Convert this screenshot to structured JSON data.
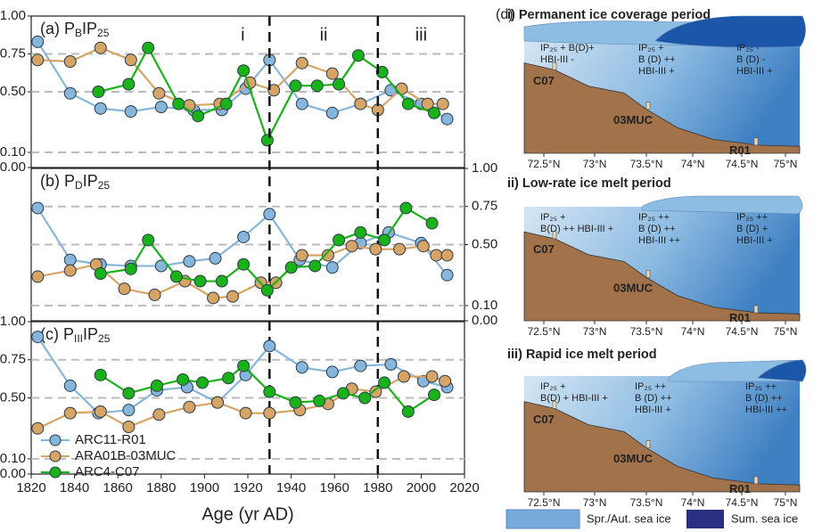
{
  "chart_data": [
    {
      "type": "line",
      "title": [
        "(a) P",
        "B",
        "IP",
        "25"
      ],
      "xlim": [
        1820,
        2020
      ],
      "ylim": [
        0,
        1
      ],
      "yticks": [
        {
          "value": 0,
          "label": "0.00"
        },
        {
          "value": 0.1,
          "label": "0.10"
        },
        {
          "value": 0.5,
          "label": "0.50"
        },
        {
          "value": 0.75,
          "label": "0.75"
        },
        {
          "value": 1,
          "label": "1.00"
        }
      ],
      "y_axis_side": "left",
      "grid": true,
      "period_boundaries": [
        1930,
        1980
      ],
      "period_labels": [
        "i",
        "ii",
        "iii"
      ],
      "series": [
        {
          "color": "#86b6dc",
          "x": [
            1823,
            1838,
            1852,
            1866,
            1880,
            1895,
            1908,
            1919,
            1930,
            1945,
            1959,
            1972,
            1986,
            2000,
            2012
          ],
          "values": [
            0.83,
            0.49,
            0.39,
            0.37,
            0.4,
            0.38,
            0.38,
            0.52,
            0.71,
            0.42,
            0.36,
            0.42,
            0.51,
            0.42,
            0.32
          ]
        },
        {
          "color": "#d6a566",
          "x": [
            1823,
            1838,
            1852,
            1866,
            1879,
            1893,
            1907,
            1921,
            1932,
            1945,
            1959,
            1972,
            1980,
            1991,
            2003,
            2010
          ],
          "values": [
            0.71,
            0.7,
            0.79,
            0.71,
            0.49,
            0.41,
            0.42,
            0.56,
            0.51,
            0.69,
            0.62,
            0.42,
            0.38,
            0.52,
            0.42,
            0.42
          ]
        },
        {
          "color": "#19b319",
          "x": [
            1851,
            1865,
            1874,
            1888,
            1897,
            1910,
            1918,
            1929,
            1942,
            1952,
            1962,
            1971,
            1982,
            1994,
            2006
          ],
          "values": [
            0.5,
            0.55,
            0.79,
            0.42,
            0.34,
            0.42,
            0.64,
            0.18,
            0.54,
            0.54,
            0.55,
            0.74,
            0.63,
            0.42,
            0.36
          ]
        }
      ]
    },
    {
      "type": "line",
      "title": [
        "(b) P",
        "D",
        "IP",
        "25"
      ],
      "xlim": [
        1820,
        2020
      ],
      "ylim": [
        0,
        1
      ],
      "yticks": [
        {
          "value": 0,
          "label": "0.00"
        },
        {
          "value": 0.1,
          "label": "0.10"
        },
        {
          "value": 0.5,
          "label": "0.50"
        },
        {
          "value": 0.75,
          "label": "0.75"
        },
        {
          "value": 1,
          "label": "1.00"
        }
      ],
      "y_axis_side": "right",
      "grid": true,
      "series": [
        {
          "color": "#86b6dc",
          "x": [
            1823,
            1838,
            1852,
            1866,
            1880,
            1893,
            1905,
            1918,
            1930,
            1944,
            1959,
            1972,
            1985,
            2000,
            2012
          ],
          "values": [
            0.74,
            0.4,
            0.37,
            0.36,
            0.36,
            0.39,
            0.41,
            0.55,
            0.7,
            0.4,
            0.35,
            0.51,
            0.58,
            0.51,
            0.3
          ]
        },
        {
          "color": "#d6a566",
          "x": [
            1823,
            1838,
            1850,
            1863,
            1877,
            1891,
            1904,
            1913,
            1926,
            1933,
            1945,
            1957,
            1968,
            1979,
            1990,
            2001,
            2007,
            2012
          ],
          "values": [
            0.29,
            0.33,
            0.37,
            0.21,
            0.17,
            0.26,
            0.15,
            0.16,
            0.25,
            0.25,
            0.43,
            0.43,
            0.49,
            0.47,
            0.47,
            0.49,
            0.43,
            0.43
          ]
        },
        {
          "color": "#19b319",
          "x": [
            1852,
            1866,
            1874,
            1887,
            1898,
            1908,
            1918,
            1929,
            1940,
            1951,
            1962,
            1972,
            1983,
            1993,
            2005
          ],
          "values": [
            0.31,
            0.34,
            0.53,
            0.29,
            0.26,
            0.26,
            0.37,
            0.2,
            0.35,
            0.36,
            0.53,
            0.58,
            0.53,
            0.74,
            0.64
          ]
        }
      ]
    },
    {
      "type": "line",
      "title": [
        "(c) P",
        "III",
        "IP",
        "25"
      ],
      "xlim": [
        1820,
        2020
      ],
      "ylim": [
        0,
        1
      ],
      "xticks": [
        1820,
        1840,
        1860,
        1880,
        1900,
        1920,
        1940,
        1960,
        1980,
        2000,
        2020
      ],
      "xlabel": "Age (yr AD)",
      "yticks": [
        {
          "value": 0,
          "label": "0.00"
        },
        {
          "value": 0.1,
          "label": "0.10"
        },
        {
          "value": 0.5,
          "label": "0.50"
        },
        {
          "value": 0.75,
          "label": "0.75"
        },
        {
          "value": 1,
          "label": "1.00"
        }
      ],
      "y_axis_side": "left",
      "grid": true,
      "legend": "lower left",
      "series": [
        {
          "name": "ARC11-R01",
          "color": "#86b6dc",
          "x": [
            1823,
            1838,
            1851,
            1865,
            1878,
            1892,
            1906,
            1919,
            1930,
            1945,
            1959,
            1972,
            1986,
            2001,
            2012
          ],
          "values": [
            0.9,
            0.58,
            0.4,
            0.42,
            0.55,
            0.57,
            0.47,
            0.65,
            0.84,
            0.7,
            0.67,
            0.71,
            0.72,
            0.61,
            0.57
          ]
        },
        {
          "name": "ARA01B-03MUC",
          "color": "#d6a566",
          "x": [
            1823,
            1838,
            1852,
            1865,
            1879,
            1893,
            1906,
            1919,
            1930,
            1944,
            1957,
            1968,
            1979,
            1992,
            2005,
            2011
          ],
          "values": [
            0.3,
            0.4,
            0.41,
            0.31,
            0.39,
            0.44,
            0.47,
            0.4,
            0.4,
            0.42,
            0.46,
            0.56,
            0.54,
            0.64,
            0.64,
            0.61
          ]
        },
        {
          "name": "ARC4-C07",
          "color": "#19b319",
          "x": [
            1852,
            1865,
            1878,
            1890,
            1899,
            1911,
            1918,
            1930,
            1942,
            1953,
            1964,
            1974,
            1983,
            1994,
            2006
          ],
          "values": [
            0.65,
            0.53,
            0.58,
            0.62,
            0.6,
            0.63,
            0.71,
            0.54,
            0.47,
            0.48,
            0.53,
            0.5,
            0.6,
            0.41,
            0.52
          ]
        }
      ]
    }
  ],
  "diagram": {
    "label": "(d)",
    "sections": [
      {
        "title": "i) Permanent ice coverage period",
        "notes": [
          [
            "IP₂₅ +  B(D)+",
            "HBI-III -"
          ],
          [
            "IP₂₅ +",
            "B (D) ++",
            "HBI-III +"
          ],
          [
            "IP₂₅ -",
            "B (D) -",
            "HBI-III +"
          ]
        ],
        "sites": [
          "C07",
          "03MUC",
          "R01"
        ],
        "latitudes": [
          "72.5°N",
          "73°N",
          "73.5°N",
          "74°N",
          "74.5°N",
          "75°N"
        ]
      },
      {
        "title": "ii) Low-rate ice melt period",
        "notes": [
          [
            "IP₂₅ +",
            "B(D) ++  HBI-III +"
          ],
          [
            "IP₂₅ ++",
            "B (D) ++",
            "HBI-III ++"
          ],
          [
            "IP₂₅ ++",
            "B (D) +",
            "HBI-III +"
          ]
        ],
        "sites": [
          "C07",
          "03MUC",
          "R01"
        ],
        "latitudes": [
          "72.5°N",
          "73°N",
          "73.5°N",
          "74°N",
          "74.5°N",
          "75°N"
        ]
      },
      {
        "title": "iii) Rapid ice melt period",
        "notes": [
          [
            "IP₂₅ +",
            "B(D) +  HBI-III +"
          ],
          [
            "IP₂₅ ++",
            "B (D) ++",
            "HBI-III +"
          ],
          [
            "IP₂₅ ++",
            "B (D) ++",
            "HBI-III ++"
          ]
        ],
        "sites": [
          "C07",
          "03MUC",
          "R01"
        ],
        "latitudes": [
          "72.5°N",
          "73°N",
          "73.5°N",
          "74°N",
          "74.5°N",
          "75°N"
        ]
      }
    ],
    "legend": [
      "Spr./Aut. sea ice",
      "Sum. sea ice"
    ]
  }
}
